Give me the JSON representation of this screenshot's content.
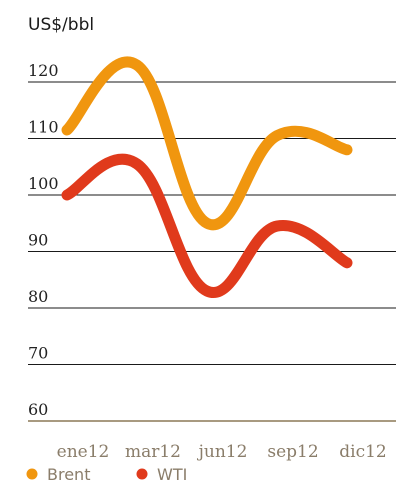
{
  "chart_data": {
    "type": "line",
    "unit_label": "US$/bbl",
    "ylim": [
      60,
      120
    ],
    "yticks": [
      120,
      110,
      100,
      90,
      80,
      70,
      60
    ],
    "categories": [
      "ene12",
      "mar12",
      "jun12",
      "sep12",
      "dic12"
    ],
    "grid": true,
    "legend_position": "bottom-left",
    "series": [
      {
        "name": "Brent",
        "color": "#f0960f",
        "x": [
          0,
          1,
          2,
          3,
          4
        ],
        "values": [
          111.5,
          123,
          95,
          110.5,
          108
        ]
      },
      {
        "name": "WTI",
        "color": "#e03a1c",
        "x": [
          0,
          1,
          2,
          3,
          4
        ],
        "values": [
          100,
          105.5,
          83,
          94.5,
          88
        ]
      }
    ]
  },
  "colors": {
    "grid": "#1a1a1a",
    "axis": "#a89a80"
  }
}
